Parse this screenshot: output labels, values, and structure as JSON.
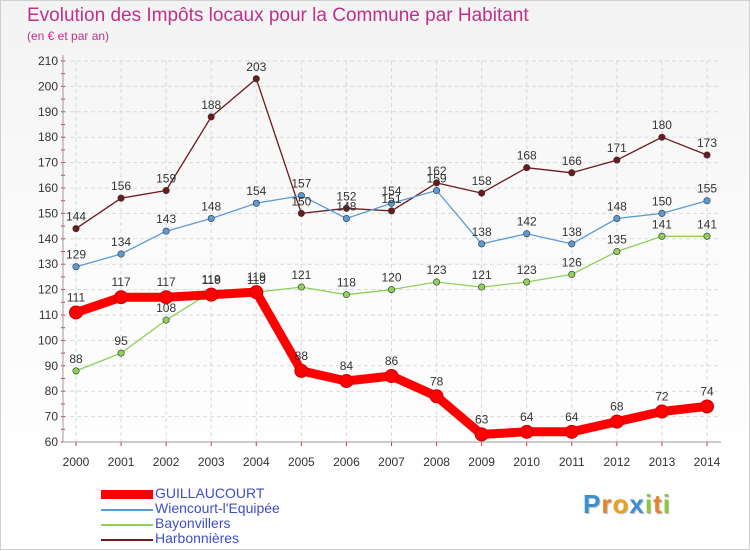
{
  "header": {
    "title": "Evolution des Impôts locaux pour la Commune par Habitant",
    "subtitle": "(en € et par an)"
  },
  "logo": {
    "letters": [
      "P",
      "r",
      "o",
      "x",
      "i",
      "t",
      "i"
    ],
    "colors": [
      "#3a8fd1",
      "#e8812b",
      "#e8a21f",
      "#3a8fd1",
      "#8dc63f",
      "#e8812b",
      "#8dc63f"
    ]
  },
  "chart_data": {
    "type": "line",
    "x": [
      "2000",
      "2001",
      "2002",
      "2003",
      "2004",
      "2005",
      "2006",
      "2007",
      "2008",
      "2009",
      "2010",
      "2011",
      "2012",
      "2013",
      "2014"
    ],
    "ylim": [
      60,
      210
    ],
    "yticks": [
      60,
      70,
      80,
      90,
      100,
      110,
      120,
      130,
      140,
      150,
      160,
      170,
      180,
      190,
      200,
      210
    ],
    "grid": true,
    "legend_position": "bottom-left",
    "series": [
      {
        "name": "Harbonnières",
        "color": "#6b1a1e",
        "highlight": false,
        "values": [
          144,
          156,
          159,
          188,
          203,
          150,
          152,
          151,
          162,
          158,
          168,
          166,
          171,
          180,
          173
        ],
        "labels": [
          "144",
          "156",
          "159",
          "188",
          "203",
          "150",
          "152",
          "151",
          "162",
          "158",
          "168",
          "166",
          "171",
          "180",
          "173"
        ]
      },
      {
        "name": "Wiencourt-l'Equipée",
        "color": "#5b9bd5",
        "highlight": false,
        "values": [
          129,
          134,
          143,
          148,
          154,
          157,
          148,
          154,
          159,
          138,
          142,
          138,
          148,
          150,
          155
        ],
        "labels": [
          "129",
          "134",
          "143",
          "148",
          "154",
          "157",
          "148",
          "154",
          "159",
          "138",
          "142",
          "138",
          "148",
          "150",
          "155"
        ]
      },
      {
        "name": "Bayonvillers",
        "color": "#8dd05a",
        "highlight": false,
        "values": [
          88,
          95,
          108,
          119,
          119,
          121,
          118,
          120,
          123,
          121,
          123,
          126,
          135,
          141,
          141
        ],
        "labels": [
          "88",
          "95",
          "108",
          "119",
          "119",
          "121",
          "118",
          "120",
          "123",
          "121",
          "123",
          "126",
          "135",
          "141",
          "141"
        ]
      },
      {
        "name": "GUILLAUCOURT",
        "color": "#ff0000",
        "highlight": true,
        "values": [
          111,
          117,
          117,
          118,
          119,
          88,
          84,
          86,
          78,
          63,
          64,
          64,
          68,
          72,
          74
        ],
        "labels": [
          "111",
          "117",
          "117",
          "118",
          "119",
          "88",
          "84",
          "86",
          "78",
          "63",
          "64",
          "64",
          "68",
          "72",
          "74"
        ]
      }
    ]
  },
  "legend": [
    {
      "name": "GUILLAUCOURT",
      "color": "#ff0000",
      "highlight": true
    },
    {
      "name": "Wiencourt-l'Equipée",
      "color": "#5b9bd5",
      "highlight": false
    },
    {
      "name": "Bayonvillers",
      "color": "#8dd05a",
      "highlight": false
    },
    {
      "name": "Harbonnières",
      "color": "#6b1a1e",
      "highlight": false
    }
  ]
}
